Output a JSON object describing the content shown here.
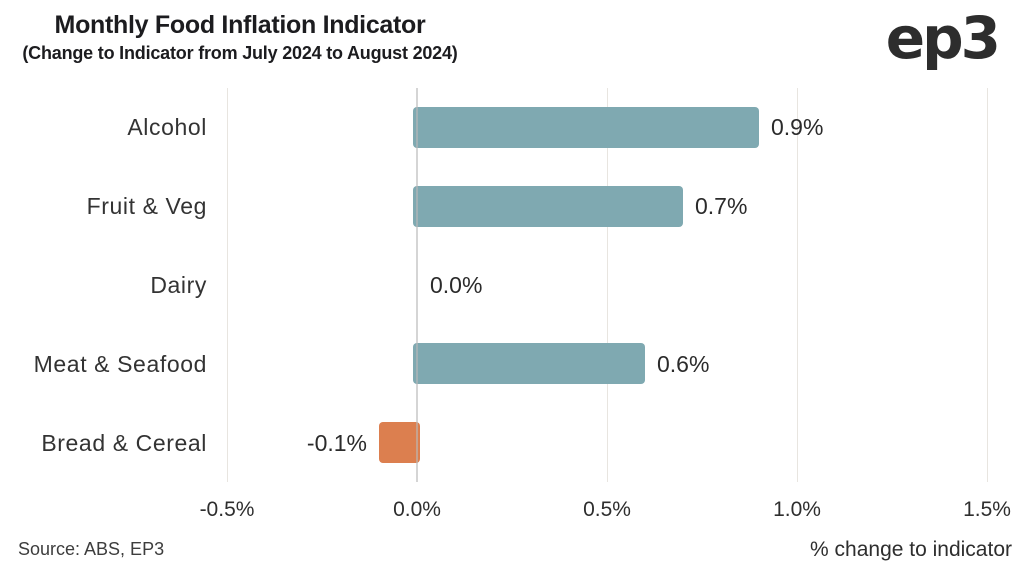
{
  "header": {
    "title": "Monthly Food Inflation Indicator",
    "subtitle": "(Change to Indicator from July 2024 to August 2024)",
    "logo": "ep3"
  },
  "chart_data": {
    "type": "bar",
    "orientation": "horizontal",
    "title": "Monthly Food Inflation Indicator",
    "subtitle": "(Change to Indicator from July 2024 to August 2024)",
    "categories": [
      "Alcohol",
      "Fruit & Veg",
      "Dairy",
      "Meat & Seafood",
      "Bread & Cereal"
    ],
    "values": [
      0.9,
      0.7,
      0.0,
      0.6,
      -0.1
    ],
    "value_labels": [
      "0.9%",
      "0.7%",
      "0.0%",
      "0.6%",
      "-0.1%"
    ],
    "x_ticks": [
      -0.5,
      0.0,
      0.5,
      1.0,
      1.5
    ],
    "x_tick_labels": [
      "-0.5%",
      "0.0%",
      "0.5%",
      "1.0%",
      "1.5%"
    ],
    "xlim": [
      -0.6,
      1.6
    ],
    "xlabel": "% change to indicator",
    "ylabel": "",
    "grid": "vertical",
    "legend": "none",
    "positive_color": "#7fa9b1",
    "negative_color": "#dc7f4f"
  },
  "footer": {
    "source": "Source: ABS, EP3"
  }
}
